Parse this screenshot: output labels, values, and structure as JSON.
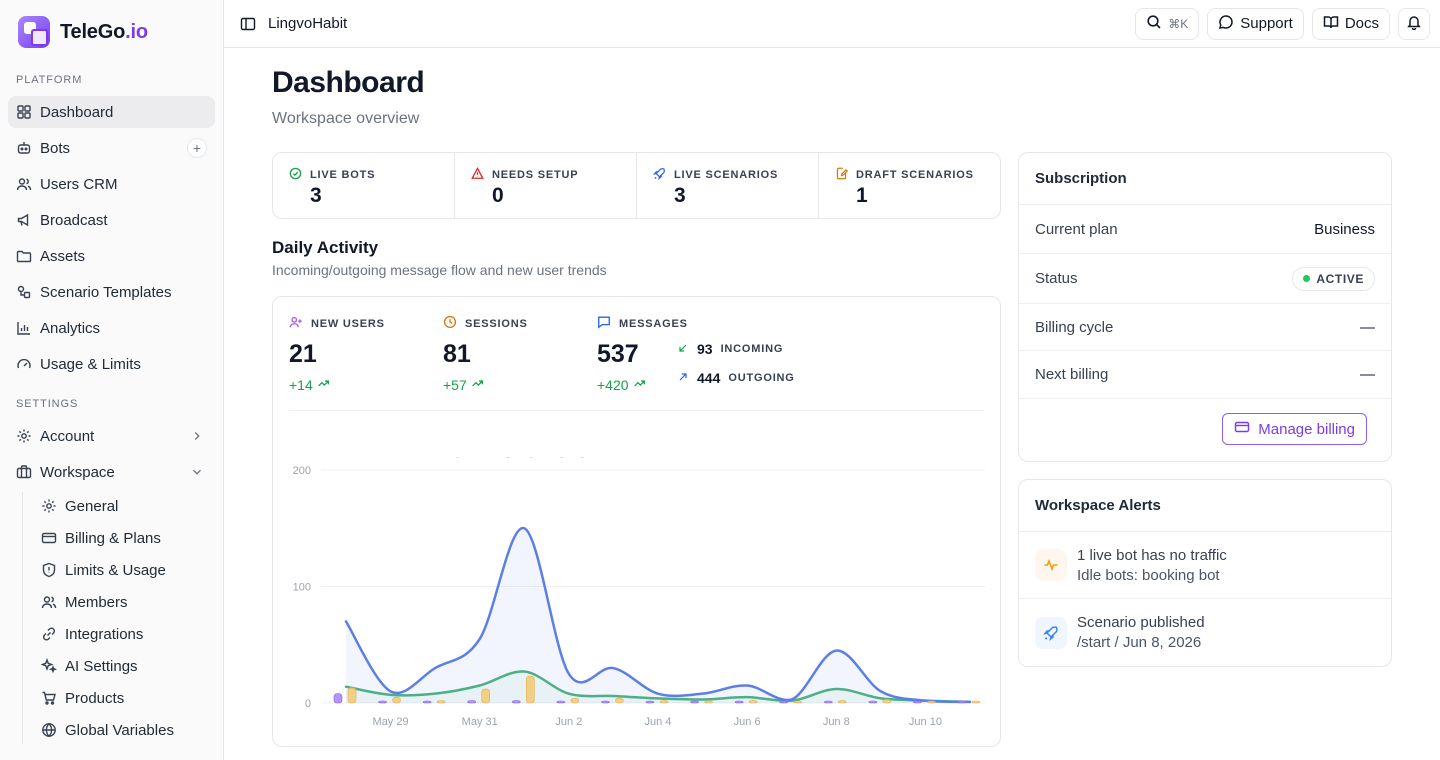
{
  "brand": {
    "name": "TeleGo",
    "tld": ".io"
  },
  "sidebar": {
    "platform_label": "PLATFORM",
    "settings_label": "SETTINGS",
    "platform_items": [
      {
        "label": "Dashboard",
        "icon": "grid-icon"
      },
      {
        "label": "Bots",
        "icon": "bot-icon"
      },
      {
        "label": "Users CRM",
        "icon": "users-icon"
      },
      {
        "label": "Broadcast",
        "icon": "megaphone-icon"
      },
      {
        "label": "Assets",
        "icon": "folder-icon"
      },
      {
        "label": "Scenario Templates",
        "icon": "shapes-icon"
      },
      {
        "label": "Analytics",
        "icon": "bar-chart-icon"
      },
      {
        "label": "Usage & Limits",
        "icon": "gauge-icon"
      }
    ],
    "settings_items": [
      {
        "label": "Account",
        "icon": "gear-icon"
      },
      {
        "label": "Workspace",
        "icon": "briefcase-icon"
      }
    ],
    "workspace_sub": [
      {
        "label": "General",
        "icon": "gear-icon"
      },
      {
        "label": "Billing & Plans",
        "icon": "credit-card-icon"
      },
      {
        "label": "Limits & Usage",
        "icon": "shield-icon"
      },
      {
        "label": "Members",
        "icon": "users-icon"
      },
      {
        "label": "Integrations",
        "icon": "link-icon"
      },
      {
        "label": "AI Settings",
        "icon": "sparkles-icon"
      },
      {
        "label": "Products",
        "icon": "cart-icon"
      },
      {
        "label": "Global Variables",
        "icon": "globe-icon"
      }
    ]
  },
  "topbar": {
    "app_name": "LingvoHabit",
    "shortcut": "⌘K",
    "support_label": "Support",
    "docs_label": "Docs"
  },
  "page": {
    "title": "Dashboard",
    "subtitle": "Workspace overview"
  },
  "stats": [
    {
      "label": "LIVE BOTS",
      "value": "3",
      "color": "#16a34a"
    },
    {
      "label": "NEEDS SETUP",
      "value": "0",
      "color": "#dc2626"
    },
    {
      "label": "LIVE SCENARIOS",
      "value": "3",
      "color": "#2563eb"
    },
    {
      "label": "DRAFT SCENARIOS",
      "value": "1",
      "color": "#d97706"
    }
  ],
  "activity": {
    "title": "Daily Activity",
    "subtitle": "Incoming/outgoing message flow and new user trends",
    "new_users": {
      "label": "NEW USERS",
      "value": "21",
      "delta": "+14"
    },
    "sessions": {
      "label": "SESSIONS",
      "value": "81",
      "delta": "+57"
    },
    "messages": {
      "label": "MESSAGES",
      "value": "537",
      "delta": "+420"
    },
    "incoming": {
      "label": "INCOMING",
      "value": "93"
    },
    "outgoing": {
      "label": "OUTGOING",
      "value": "444"
    }
  },
  "chart_data": {
    "type": "line",
    "x": [
      "May 28",
      "May 29",
      "May 30",
      "May 31",
      "Jun 1",
      "Jun 2",
      "Jun 3",
      "Jun 4",
      "Jun 5",
      "Jun 6",
      "Jun 7",
      "Jun 8",
      "Jun 9",
      "Jun 10",
      "Jun 11"
    ],
    "x_tick_labels": [
      "May 29",
      "May 31",
      "Jun 2",
      "Jun 4",
      "Jun 6",
      "Jun 8",
      "Jun 10"
    ],
    "ylim": [
      0,
      200
    ],
    "y_ticks": [
      0,
      100,
      200
    ],
    "legend_position": "top-left",
    "series": [
      {
        "name": "New Users",
        "kind": "bar",
        "color": "#a78bfa",
        "values": [
          8,
          1,
          0,
          2,
          2,
          1,
          1,
          1,
          0,
          1,
          0,
          1,
          1,
          0,
          0
        ]
      },
      {
        "name": "Sessions",
        "kind": "bar",
        "color": "#f2cc7a",
        "values": [
          13,
          5,
          2,
          12,
          23,
          4,
          4,
          2,
          1,
          2,
          1,
          2,
          3,
          1,
          0
        ]
      },
      {
        "name": "Incoming",
        "kind": "line",
        "color": "#4db37e",
        "values": [
          14,
          7,
          8,
          15,
          27,
          8,
          6,
          4,
          3,
          5,
          2,
          12,
          4,
          2,
          1
        ]
      },
      {
        "name": "Outgoing",
        "kind": "area",
        "color": "#5b7fe6",
        "values": [
          70,
          10,
          30,
          55,
          150,
          25,
          30,
          8,
          8,
          15,
          3,
          45,
          10,
          2,
          1
        ]
      }
    ]
  },
  "subscription": {
    "title": "Subscription",
    "plan_label": "Current plan",
    "plan_value": "Business",
    "status_label": "Status",
    "status_value": "ACTIVE",
    "cycle_label": "Billing cycle",
    "cycle_value": "—",
    "next_label": "Next billing",
    "next_value": "—",
    "manage_label": "Manage billing"
  },
  "alerts": {
    "title": "Workspace Alerts",
    "items": [
      {
        "title": "1 live bot has no traffic",
        "sub": "Idle bots: booking bot",
        "icon": "activity-icon",
        "color": "#f59e0b"
      },
      {
        "title": "Scenario published",
        "sub": "/start / Jun 8, 2026",
        "icon": "rocket-icon",
        "color": "#3b82f6"
      }
    ]
  }
}
